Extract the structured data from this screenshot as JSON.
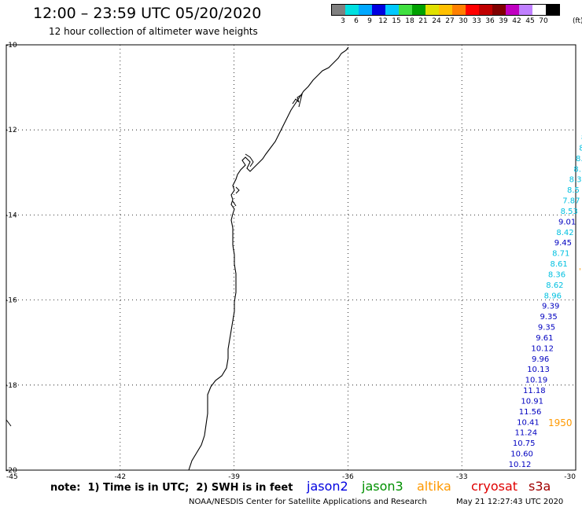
{
  "header": {
    "title": "12:00 – 23:59 UTC 05/20/2020",
    "subtitle": "12 hour collection of altimeter wave heights"
  },
  "legend": {
    "colors": [
      "#808080",
      "#00e0e0",
      "#00a8ff",
      "#0000e0",
      "#00c8ff",
      "#40e040",
      "#00a000",
      "#e0e000",
      "#ffc000",
      "#ff8000",
      "#ff0000",
      "#c00000",
      "#800000",
      "#c000c0",
      "#c080ff",
      "#ffffff",
      "#000000"
    ],
    "labels": [
      "3",
      "6",
      "9",
      "12",
      "15",
      "18",
      "21",
      "24",
      "27",
      "30",
      "33",
      "36",
      "39",
      "42",
      "45",
      "70"
    ],
    "unit": "(ft)"
  },
  "axes": {
    "lat_labels": [
      "-10",
      "-12",
      "-14",
      "-16",
      "-18",
      "-20"
    ],
    "lon_labels": [
      "-45",
      "-42",
      "-39",
      "-36",
      "-33",
      "-30"
    ]
  },
  "wave_heights": [
    {
      "text": "8",
      "color": "#00c0e0"
    },
    {
      "text": "8",
      "color": "#00c0e0"
    },
    {
      "text": "8.",
      "color": "#00c0e0"
    },
    {
      "text": "8.",
      "color": "#00c0e0"
    },
    {
      "text": "8.3",
      "color": "#00c0e0"
    },
    {
      "text": "8.5",
      "color": "#00c0e0"
    },
    {
      "text": "7.87",
      "color": "#00c0e0"
    },
    {
      "text": "8.53",
      "color": "#00c0e0"
    },
    {
      "text": "9.01",
      "color": "#0000c0"
    },
    {
      "text": "8.42",
      "color": "#00c0e0"
    },
    {
      "text": "9.45",
      "color": "#0000c0"
    },
    {
      "text": "8.71",
      "color": "#00c0e0"
    },
    {
      "text": "8.61",
      "color": "#00c0e0"
    },
    {
      "text": "8.36",
      "color": "#00c0e0"
    },
    {
      "text": "8.62",
      "color": "#00c0e0"
    },
    {
      "text": "8.96",
      "color": "#00c0e0"
    },
    {
      "text": "9.39",
      "color": "#0000c0"
    },
    {
      "text": "9.35",
      "color": "#0000c0"
    },
    {
      "text": "9.35",
      "color": "#0000c0"
    },
    {
      "text": "9.61",
      "color": "#0000c0"
    },
    {
      "text": "10.12",
      "color": "#0000c0"
    },
    {
      "text": "9.96",
      "color": "#0000c0"
    },
    {
      "text": "10.13",
      "color": "#0000c0"
    },
    {
      "text": "10.19",
      "color": "#0000c0"
    },
    {
      "text": "11.18",
      "color": "#0000c0"
    },
    {
      "text": "10.91",
      "color": "#0000c0"
    },
    {
      "text": "11.56",
      "color": "#0000c0"
    },
    {
      "text": "10.41",
      "color": "#0000c0"
    },
    {
      "text": "11.24",
      "color": "#0000c0"
    },
    {
      "text": "10.75",
      "color": "#0000c0"
    },
    {
      "text": "10.60",
      "color": "#0000c0"
    },
    {
      "text": "10.12",
      "color": "#0000c0"
    }
  ],
  "pass_time": {
    "text": "1950",
    "color": "#ff9900"
  },
  "note": "note:  1) Time is in UTC;  2) SWH is in feet",
  "satellites": [
    {
      "name": "jason2",
      "color": "#0000e0"
    },
    {
      "name": "jason3",
      "color": "#009000"
    },
    {
      "name": "altika",
      "color": "#ff9900"
    },
    {
      "name": "cryosat",
      "color": "#e00000"
    },
    {
      "name": "s3a",
      "color": "#a00000"
    }
  ],
  "footer": {
    "left": "NOAA/NESDIS Center for Satellite Applications and Research",
    "right": "May 21 12:27:43 UTC 2020"
  }
}
